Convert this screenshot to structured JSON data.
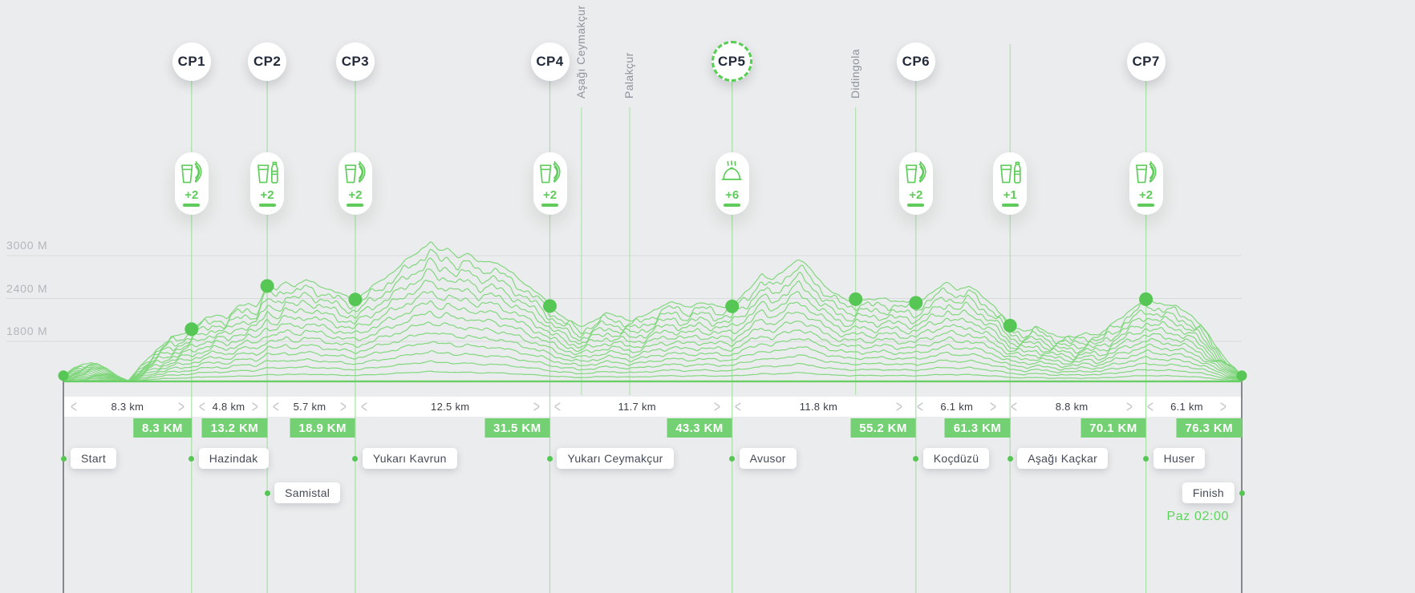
{
  "colors": {
    "background": "#ebeced",
    "accent_green": "#5ecb5a",
    "badge_green": "#74d173",
    "curve_green": "#7cd679",
    "baseline_green": "#68ce65",
    "dot_green": "#56c754",
    "guide_line_green": "#a9e1a6",
    "grid_gray": "#d8dadd",
    "dark_marker": "#85888c",
    "cp_text": "#232b3a",
    "axis_text": "#b3b6bb",
    "place_text": "#454b56",
    "pass_text": "#8e939b"
  },
  "axis": {
    "labels": [
      {
        "text": "3000 M",
        "value": 3000
      },
      {
        "text": "2400 M",
        "value": 2400
      },
      {
        "text": "1800 M",
        "value": 1800
      }
    ]
  },
  "chart_data": {
    "type": "line",
    "title": "Race course elevation profile with checkpoints",
    "x_unit": "km",
    "y_unit": "m",
    "x_range": [
      0,
      76.3
    ],
    "baseline_elevation": 1240,
    "ridge_layers": 14,
    "grid": true,
    "profile_km_elevation": [
      [
        0,
        1320
      ],
      [
        0.7,
        1430
      ],
      [
        1.3,
        1480
      ],
      [
        1.8,
        1510
      ],
      [
        2.3,
        1470
      ],
      [
        2.8,
        1420
      ],
      [
        3.4,
        1330
      ],
      [
        4.2,
        1248
      ],
      [
        5,
        1450
      ],
      [
        6,
        1680
      ],
      [
        7,
        1840
      ],
      [
        8.3,
        1970
      ],
      [
        9.2,
        2110
      ],
      [
        10,
        2180
      ],
      [
        10.6,
        2130
      ],
      [
        11.3,
        2280
      ],
      [
        12,
        2330
      ],
      [
        12.5,
        2290
      ],
      [
        13.2,
        2575
      ],
      [
        13.8,
        2520
      ],
      [
        14.4,
        2645
      ],
      [
        15,
        2570
      ],
      [
        15.7,
        2655
      ],
      [
        16.4,
        2605
      ],
      [
        17.2,
        2525
      ],
      [
        18,
        2455
      ],
      [
        18.9,
        2385
      ],
      [
        19.7,
        2510
      ],
      [
        20.6,
        2660
      ],
      [
        21.5,
        2800
      ],
      [
        22.3,
        2950
      ],
      [
        23,
        3060
      ],
      [
        23.8,
        3205
      ],
      [
        24.3,
        3050
      ],
      [
        24.9,
        3105
      ],
      [
        25.5,
        2985
      ],
      [
        26.2,
        3025
      ],
      [
        26.9,
        2905
      ],
      [
        27.7,
        2935
      ],
      [
        28.6,
        2820
      ],
      [
        29.4,
        2700
      ],
      [
        30.2,
        2555
      ],
      [
        31,
        2420
      ],
      [
        31.5,
        2295
      ],
      [
        32.3,
        2150
      ],
      [
        33.4,
        2000
      ],
      [
        34.3,
        2090
      ],
      [
        35.2,
        2185
      ],
      [
        36.1,
        2150
      ],
      [
        36.8,
        2085
      ],
      [
        37.7,
        2165
      ],
      [
        38.6,
        2290
      ],
      [
        39.5,
        2345
      ],
      [
        40.3,
        2285
      ],
      [
        41.2,
        2335
      ],
      [
        42.2,
        2300
      ],
      [
        43.3,
        2290
      ],
      [
        44.3,
        2505
      ],
      [
        45.2,
        2750
      ],
      [
        45.9,
        2645
      ],
      [
        46.7,
        2805
      ],
      [
        47.6,
        2960
      ],
      [
        48.4,
        2800
      ],
      [
        49.2,
        2605
      ],
      [
        50,
        2455
      ],
      [
        50.8,
        2365
      ],
      [
        51.5,
        2400
      ],
      [
        52.3,
        2372
      ],
      [
        53.2,
        2405
      ],
      [
        54.2,
        2352
      ],
      [
        55.2,
        2340
      ],
      [
        56.2,
        2480
      ],
      [
        57.3,
        2625
      ],
      [
        57.9,
        2525
      ],
      [
        58.6,
        2575
      ],
      [
        59.4,
        2450
      ],
      [
        60.3,
        2295
      ],
      [
        61.3,
        2020
      ],
      [
        62.2,
        1950
      ],
      [
        63,
        1995
      ],
      [
        63.9,
        1905
      ],
      [
        64.7,
        1870
      ],
      [
        65.5,
        1850
      ],
      [
        66.3,
        1925
      ],
      [
        67.1,
        1890
      ],
      [
        68,
        2055
      ],
      [
        69,
        2225
      ],
      [
        70.1,
        2390
      ],
      [
        71,
        2335
      ],
      [
        72,
        2285
      ],
      [
        72.9,
        2195
      ],
      [
        73.6,
        2050
      ],
      [
        74.4,
        1800
      ],
      [
        75.3,
        1545
      ],
      [
        76.3,
        1320
      ]
    ],
    "marker_dots_km": [
      0,
      8.3,
      13.2,
      18.9,
      31.5,
      43.3,
      51.3,
      55.2,
      61.3,
      70.1,
      76.3
    ]
  },
  "segments": [
    {
      "label": "8.3 km",
      "distance_km": 8.3,
      "cumulative_label": "8.3 KM",
      "cumulative_km": 8.3
    },
    {
      "label": "4.8 km",
      "distance_km": 4.8,
      "cumulative_label": "13.2 KM",
      "cumulative_km": 13.2
    },
    {
      "label": "5.7 km",
      "distance_km": 5.7,
      "cumulative_label": "18.9 KM",
      "cumulative_km": 18.9
    },
    {
      "label": "12.5 km",
      "distance_km": 12.5,
      "cumulative_label": "31.5 KM",
      "cumulative_km": 31.5
    },
    {
      "label": "11.7 km",
      "distance_km": 11.7,
      "cumulative_label": "43.3 KM",
      "cumulative_km": 43.3
    },
    {
      "label": "11.8 km",
      "distance_km": 11.8,
      "cumulative_label": "55.2 KM",
      "cumulative_km": 55.2
    },
    {
      "label": "6.1 km",
      "distance_km": 6.1,
      "cumulative_label": "61.3 KM",
      "cumulative_km": 61.3
    },
    {
      "label": "8.8 km",
      "distance_km": 8.8,
      "cumulative_label": "70.1 KM",
      "cumulative_km": 70.1
    },
    {
      "label": "6.1 km",
      "distance_km": 6.1,
      "cumulative_label": "76.3 KM",
      "cumulative_km": 76.3
    }
  ],
  "segment_nav": {
    "prev": "<",
    "next": ">"
  },
  "checkpoints": [
    {
      "label": "CP1",
      "km": 8.3,
      "style": "solid"
    },
    {
      "label": "CP2",
      "km": 13.2,
      "style": "solid"
    },
    {
      "label": "CP3",
      "km": 18.9,
      "style": "solid"
    },
    {
      "label": "CP4",
      "km": 31.5,
      "style": "solid"
    },
    {
      "label": "CP5",
      "km": 43.3,
      "style": "dashed"
    },
    {
      "label": "CP6",
      "km": 55.2,
      "style": "solid"
    },
    {
      "label": "CP7",
      "km": 70.1,
      "style": "solid"
    }
  ],
  "aid_stations": [
    {
      "km": 8.3,
      "icons": [
        "cup-icon",
        "banana-icon"
      ],
      "extra": "+2"
    },
    {
      "km": 13.2,
      "icons": [
        "cup-icon",
        "bottle-icon"
      ],
      "extra": "+2"
    },
    {
      "km": 18.9,
      "icons": [
        "cup-icon",
        "banana-icon"
      ],
      "extra": "+2"
    },
    {
      "km": 31.5,
      "icons": [
        "cup-icon",
        "banana-icon"
      ],
      "extra": "+2"
    },
    {
      "km": 43.3,
      "icons": [
        "hot-meal-icon"
      ],
      "extra": "+6"
    },
    {
      "km": 55.2,
      "icons": [
        "cup-icon",
        "banana-icon"
      ],
      "extra": "+2"
    },
    {
      "km": 61.3,
      "icons": [
        "cup-icon",
        "bottle-icon"
      ],
      "extra": "+1"
    },
    {
      "km": 70.1,
      "icons": [
        "cup-icon",
        "banana-icon"
      ],
      "extra": "+2"
    }
  ],
  "places": [
    {
      "name": "Start",
      "km": 0,
      "row": 1,
      "side": "right"
    },
    {
      "name": "Hazindak",
      "km": 8.3,
      "row": 1,
      "side": "right"
    },
    {
      "name": "Samistal",
      "km": 13.2,
      "row": 2,
      "side": "right"
    },
    {
      "name": "Yukarı Kavrun",
      "km": 18.9,
      "row": 1,
      "side": "right"
    },
    {
      "name": "Yukarı Ceymakçur",
      "km": 31.5,
      "row": 1,
      "side": "right"
    },
    {
      "name": "Avusor",
      "km": 43.3,
      "row": 1,
      "side": "right"
    },
    {
      "name": "Koçdüzü",
      "km": 55.2,
      "row": 1,
      "side": "right"
    },
    {
      "name": "Aşağı Kaçkar",
      "km": 61.3,
      "row": 1,
      "side": "right"
    },
    {
      "name": "Huser",
      "km": 70.1,
      "row": 1,
      "side": "right"
    },
    {
      "name": "Finish",
      "km": 76.3,
      "row": 2,
      "side": "left"
    }
  ],
  "pass_labels": [
    {
      "name": "Aşağı Ceymakçur",
      "km": 33.55
    },
    {
      "name": "Palakçur",
      "km": 36.67
    },
    {
      "name": "Didingola",
      "km": 51.3
    }
  ],
  "schedule": {
    "finish_time": "Paz 02:00"
  }
}
